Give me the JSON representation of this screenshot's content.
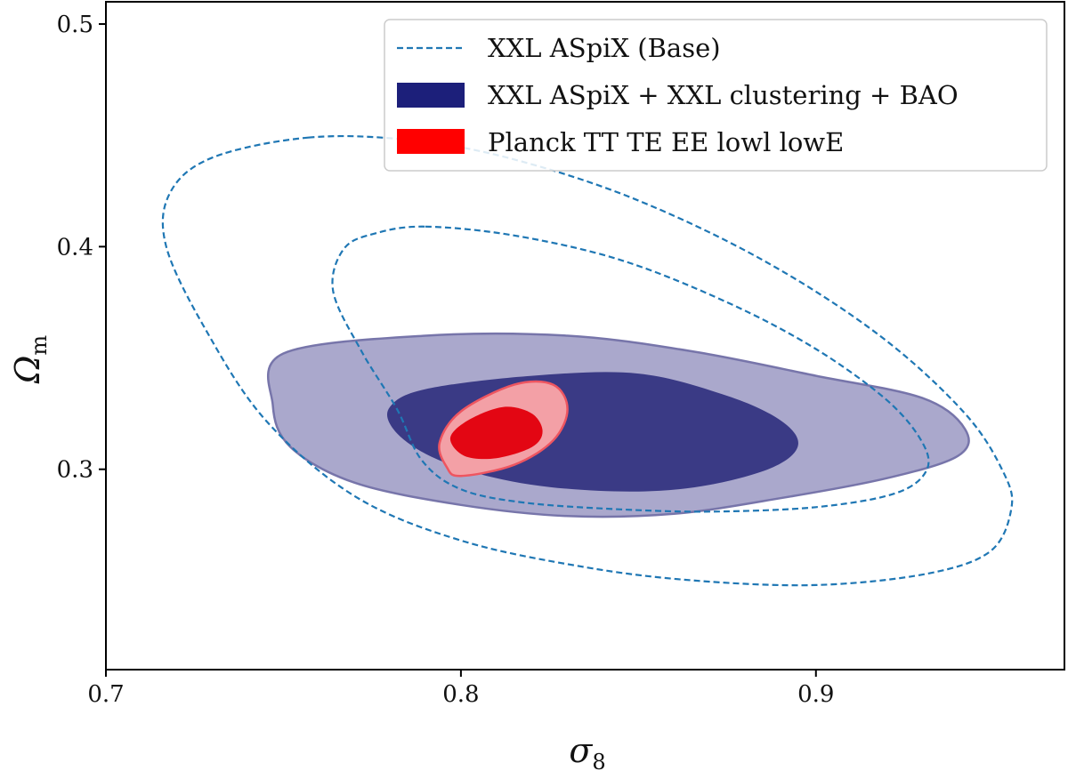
{
  "chart_data": {
    "type": "contour",
    "xlabel": "σ8",
    "xlabel_main": "σ",
    "xlabel_sub": "8",
    "ylabel": "Ωm",
    "ylabel_main": "Ω",
    "ylabel_sub": "m",
    "xlim": [
      0.7,
      0.97
    ],
    "ylim": [
      0.21,
      0.51
    ],
    "xticks": [
      0.7,
      0.8,
      0.9
    ],
    "xtick_labels": [
      "0.7",
      "0.8",
      "0.9"
    ],
    "yticks": [
      0.3,
      0.4,
      0.5
    ],
    "ytick_labels": [
      "0.3",
      "0.4",
      "0.5"
    ],
    "legend_position": "top-right",
    "series": [
      {
        "name": "XXL ASpiX (Base)",
        "style": "dashed",
        "color": "#1f77b4",
        "contours": [
          {
            "level": "68%",
            "points": [
              [
                0.79,
                0.409
              ],
              [
                0.815,
                0.405
              ],
              [
                0.845,
                0.394
              ],
              [
                0.875,
                0.375
              ],
              [
                0.9,
                0.354
              ],
              [
                0.92,
                0.331
              ],
              [
                0.93,
                0.312
              ],
              [
                0.931,
                0.299
              ],
              [
                0.922,
                0.289
              ],
              [
                0.9,
                0.283
              ],
              [
                0.871,
                0.281
              ],
              [
                0.845,
                0.282
              ],
              [
                0.818,
                0.285
              ],
              [
                0.8,
                0.291
              ],
              [
                0.789,
                0.304
              ],
              [
                0.782,
                0.327
              ],
              [
                0.772,
                0.353
              ],
              [
                0.764,
                0.38
              ],
              [
                0.767,
                0.399
              ],
              [
                0.776,
                0.406
              ]
            ]
          },
          {
            "level": "95%",
            "points": [
              [
                0.757,
                0.449
              ],
              [
                0.785,
                0.448
              ],
              [
                0.813,
                0.44
              ],
              [
                0.848,
                0.422
              ],
              [
                0.885,
                0.394
              ],
              [
                0.918,
                0.36
              ],
              [
                0.942,
                0.325
              ],
              [
                0.953,
                0.298
              ],
              [
                0.955,
                0.282
              ],
              [
                0.949,
                0.263
              ],
              [
                0.931,
                0.253
              ],
              [
                0.9,
                0.248
              ],
              [
                0.866,
                0.25
              ],
              [
                0.835,
                0.256
              ],
              [
                0.8,
                0.268
              ],
              [
                0.77,
                0.288
              ],
              [
                0.745,
                0.322
              ],
              [
                0.728,
                0.363
              ],
              [
                0.717,
                0.4
              ],
              [
                0.718,
                0.424
              ],
              [
                0.73,
                0.44
              ]
            ]
          }
        ]
      },
      {
        "name": "XXL ASpiX + XXL clustering + BAO",
        "style": "filled",
        "color": "#1c1f7a",
        "contours": [
          {
            "level": "68%",
            "points": [
              [
                0.79,
                0.336
              ],
              [
                0.82,
                0.342
              ],
              [
                0.85,
                0.343
              ],
              [
                0.875,
                0.333
              ],
              [
                0.89,
                0.322
              ],
              [
                0.895,
                0.311
              ],
              [
                0.888,
                0.301
              ],
              [
                0.87,
                0.293
              ],
              [
                0.85,
                0.29
              ],
              [
                0.825,
                0.292
              ],
              [
                0.805,
                0.298
              ],
              [
                0.79,
                0.307
              ],
              [
                0.781,
                0.318
              ],
              [
                0.78,
                0.328
              ]
            ]
          },
          {
            "level": "95%",
            "points": [
              [
                0.75,
                0.352
              ],
              [
                0.79,
                0.36
              ],
              [
                0.83,
                0.36
              ],
              [
                0.865,
                0.353
              ],
              [
                0.9,
                0.342
              ],
              [
                0.93,
                0.332
              ],
              [
                0.942,
                0.318
              ],
              [
                0.94,
                0.306
              ],
              [
                0.92,
                0.296
              ],
              [
                0.89,
                0.287
              ],
              [
                0.86,
                0.28
              ],
              [
                0.83,
                0.279
              ],
              [
                0.8,
                0.284
              ],
              [
                0.77,
                0.294
              ],
              [
                0.752,
                0.31
              ],
              [
                0.747,
                0.329
              ]
            ]
          }
        ]
      },
      {
        "name": "Planck TT TE EE lowl lowE",
        "style": "filled",
        "color": "#ff0000",
        "contours": [
          {
            "level": "68%",
            "points": [
              [
                0.812,
                0.328
              ],
              [
                0.82,
                0.325
              ],
              [
                0.823,
                0.317
              ],
              [
                0.82,
                0.31
              ],
              [
                0.81,
                0.305
              ],
              [
                0.801,
                0.306
              ],
              [
                0.797,
                0.314
              ],
              [
                0.802,
                0.322
              ]
            ]
          },
          {
            "level": "95%",
            "points": [
              [
                0.815,
                0.338
              ],
              [
                0.826,
                0.338
              ],
              [
                0.83,
                0.327
              ],
              [
                0.826,
                0.313
              ],
              [
                0.815,
                0.302
              ],
              [
                0.8,
                0.297
              ],
              [
                0.796,
                0.301
              ],
              [
                0.794,
                0.312
              ],
              [
                0.8,
                0.326
              ]
            ]
          }
        ]
      }
    ]
  }
}
